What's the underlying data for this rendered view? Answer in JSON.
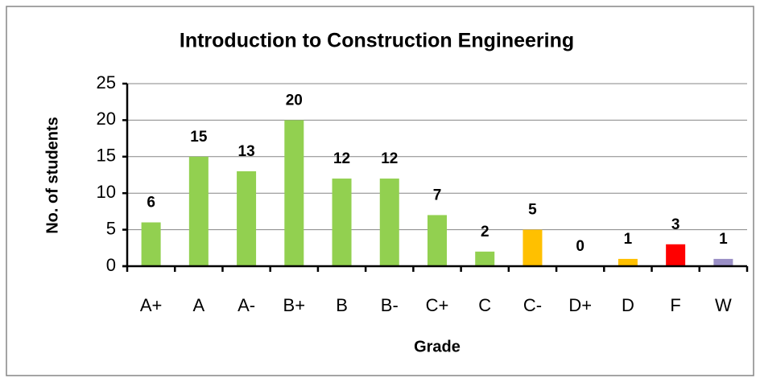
{
  "chart_data": {
    "type": "bar",
    "title": "Introduction to Construction Engineering",
    "x_label": "Grade",
    "y_label": "No. of students",
    "categories": [
      "A+",
      "A",
      "A-",
      "B+",
      "B",
      "B-",
      "C+",
      "C",
      "C-",
      "D+",
      "D",
      "F",
      "W"
    ],
    "values": [
      6,
      15,
      13,
      20,
      12,
      12,
      7,
      2,
      5,
      0,
      1,
      3,
      1
    ],
    "colors": [
      "#92d050",
      "#92d050",
      "#92d050",
      "#92d050",
      "#92d050",
      "#92d050",
      "#92d050",
      "#92d050",
      "#ffc000",
      "#92d050",
      "#ffc000",
      "#ff0000",
      "#9a8fc6"
    ],
    "ylim": [
      0,
      25
    ],
    "yticks": [
      0,
      5,
      10,
      15,
      20,
      25
    ],
    "grid": true
  }
}
